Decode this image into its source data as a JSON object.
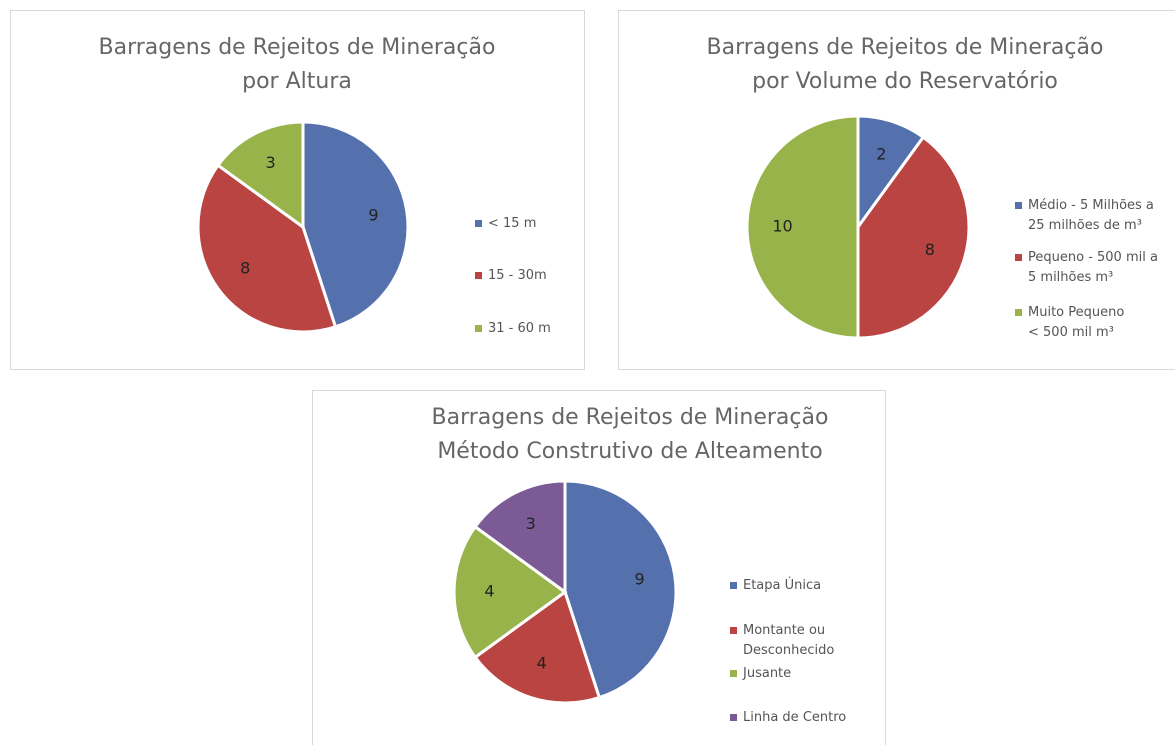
{
  "chart_data": [
    {
      "type": "pie",
      "title": "Barragens de Rejeitos de Mineração\npor Altura",
      "categories": [
        "< 15 m",
        "15 - 30m",
        "31 - 60 m"
      ],
      "values": [
        9,
        8,
        3
      ],
      "colors": [
        "#5470ad",
        "#b94441",
        "#98b34a"
      ]
    },
    {
      "type": "pie",
      "title": "Barragens de Rejeitos de Mineração\npor Volume do Reservatório",
      "categories": [
        "Médio - 5 Milhões a\n25 milhões de m³",
        "Pequeno - 500 mil a\n5 milhões m³",
        "Muito Pequeno\n< 500 mil m³"
      ],
      "values": [
        2,
        8,
        10
      ],
      "colors": [
        "#5470ad",
        "#b94441",
        "#98b34a"
      ]
    },
    {
      "type": "pie",
      "title": "Barragens de Rejeitos de Mineração\nMétodo Construtivo de Alteamento",
      "categories": [
        "Etapa Única",
        "Montante ou\nDesconhecido",
        "Jusante",
        "Linha de Centro"
      ],
      "values": [
        9,
        4,
        4,
        3
      ],
      "colors": [
        "#5470ad",
        "#b94441",
        "#98b34a",
        "#7b5a95"
      ]
    }
  ]
}
